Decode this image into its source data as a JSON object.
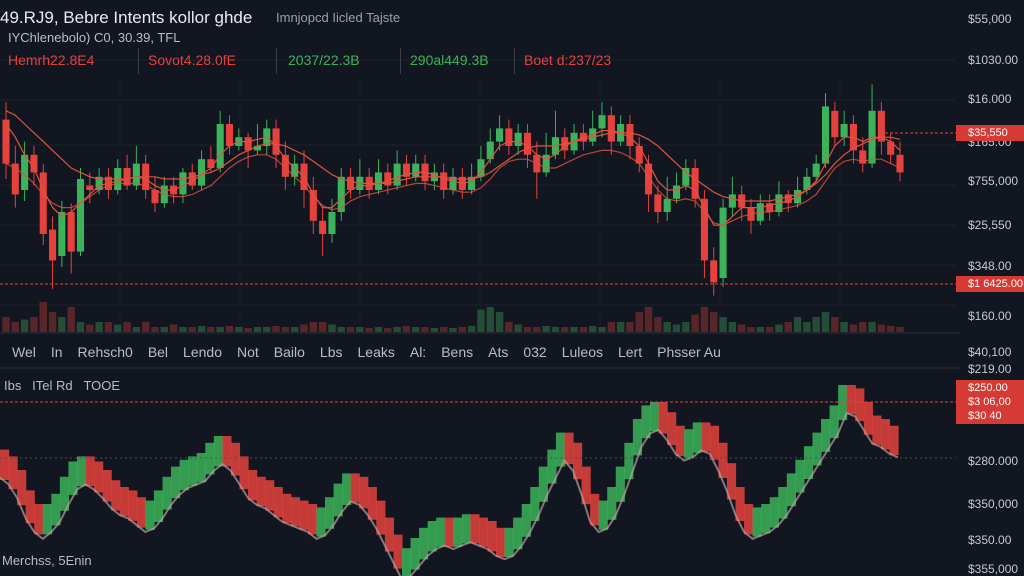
{
  "header": {
    "title": "49.RJ9, Bebre Intents kollor ghde",
    "subtitle": "Imnjopcd Iicled Tajste",
    "subline": "IYChlenebolo) C0, 30.39, TFL"
  },
  "stats": [
    "Hemrh22.8E4",
    "Sovot4.28.0fE",
    "2037/22.3B",
    "290al449.3B",
    "Boet d:237/23"
  ],
  "nav_items": [
    "Wel",
    "In",
    "Rehsch0",
    "Bel",
    "Lendo",
    "Not",
    "Bailo",
    "Lbs",
    "Leaks",
    "Al:",
    "Bens",
    "Ats",
    "032",
    "Luleos",
    "Lert",
    "Phsser Au"
  ],
  "lower_panel": {
    "label": "Ibs   ITel Rd   TOOE"
  },
  "footer": {
    "label": "Merchss, 5Enin"
  },
  "price_axis": [
    "$55,000",
    "$1030.00",
    "$16.000",
    "$165.00",
    "$755,000",
    "$25,550",
    "$348.00",
    "$160.00",
    "$40,100",
    "$219.00",
    "$280.000",
    "$350,000",
    "$350.00",
    "$355,000"
  ],
  "price_tags": [
    "$35,550",
    "$1 6425.00",
    "$250.00",
    "$3 06,00",
    "$30 40"
  ],
  "colors": {
    "up": "#3cb35a",
    "down": "#e5423d",
    "background": "#121620",
    "ma": "#e0523f"
  },
  "chart_data": [
    {
      "type": "candlestick",
      "description_source": "upper price panel",
      "candles": [
        {
          "o": 0.82,
          "c": 0.62,
          "h": 0.9,
          "l": 0.55
        },
        {
          "o": 0.62,
          "c": 0.48,
          "h": 0.7,
          "l": 0.42
        },
        {
          "o": 0.5,
          "c": 0.66,
          "h": 0.72,
          "l": 0.45
        },
        {
          "o": 0.66,
          "c": 0.58,
          "h": 0.7,
          "l": 0.52
        },
        {
          "o": 0.58,
          "c": 0.3,
          "h": 0.62,
          "l": 0.25
        },
        {
          "o": 0.32,
          "c": 0.18,
          "h": 0.38,
          "l": 0.05
        },
        {
          "o": 0.2,
          "c": 0.4,
          "h": 0.45,
          "l": 0.15
        },
        {
          "o": 0.4,
          "c": 0.22,
          "h": 0.44,
          "l": 0.12
        },
        {
          "o": 0.22,
          "c": 0.55,
          "h": 0.6,
          "l": 0.2
        },
        {
          "o": 0.52,
          "c": 0.5,
          "h": 0.58,
          "l": 0.44
        },
        {
          "o": 0.5,
          "c": 0.56,
          "h": 0.6,
          "l": 0.48
        },
        {
          "o": 0.56,
          "c": 0.5,
          "h": 0.6,
          "l": 0.46
        },
        {
          "o": 0.5,
          "c": 0.6,
          "h": 0.64,
          "l": 0.48
        },
        {
          "o": 0.6,
          "c": 0.52,
          "h": 0.66,
          "l": 0.5
        },
        {
          "o": 0.52,
          "c": 0.62,
          "h": 0.7,
          "l": 0.5
        },
        {
          "o": 0.62,
          "c": 0.5,
          "h": 0.66,
          "l": 0.46
        },
        {
          "o": 0.5,
          "c": 0.44,
          "h": 0.56,
          "l": 0.4
        },
        {
          "o": 0.44,
          "c": 0.52,
          "h": 0.56,
          "l": 0.42
        },
        {
          "o": 0.52,
          "c": 0.48,
          "h": 0.56,
          "l": 0.44
        },
        {
          "o": 0.48,
          "c": 0.58,
          "h": 0.6,
          "l": 0.44
        },
        {
          "o": 0.58,
          "c": 0.52,
          "h": 0.62,
          "l": 0.5
        },
        {
          "o": 0.52,
          "c": 0.64,
          "h": 0.68,
          "l": 0.5
        },
        {
          "o": 0.64,
          "c": 0.6,
          "h": 0.7,
          "l": 0.58
        },
        {
          "o": 0.6,
          "c": 0.8,
          "h": 0.86,
          "l": 0.58
        },
        {
          "o": 0.8,
          "c": 0.7,
          "h": 0.84,
          "l": 0.66
        },
        {
          "o": 0.7,
          "c": 0.74,
          "h": 0.78,
          "l": 0.68
        },
        {
          "o": 0.74,
          "c": 0.68,
          "h": 0.76,
          "l": 0.6
        },
        {
          "o": 0.68,
          "c": 0.7,
          "h": 0.8,
          "l": 0.66
        },
        {
          "o": 0.7,
          "c": 0.78,
          "h": 0.82,
          "l": 0.66
        },
        {
          "o": 0.78,
          "c": 0.66,
          "h": 0.82,
          "l": 0.6
        },
        {
          "o": 0.66,
          "c": 0.56,
          "h": 0.72,
          "l": 0.5
        },
        {
          "o": 0.56,
          "c": 0.62,
          "h": 0.66,
          "l": 0.52
        },
        {
          "o": 0.62,
          "c": 0.5,
          "h": 0.68,
          "l": 0.42
        },
        {
          "o": 0.5,
          "c": 0.36,
          "h": 0.56,
          "l": 0.3
        },
        {
          "o": 0.36,
          "c": 0.3,
          "h": 0.42,
          "l": 0.2
        },
        {
          "o": 0.3,
          "c": 0.4,
          "h": 0.46,
          "l": 0.26
        },
        {
          "o": 0.4,
          "c": 0.56,
          "h": 0.6,
          "l": 0.36
        },
        {
          "o": 0.56,
          "c": 0.5,
          "h": 0.6,
          "l": 0.46
        },
        {
          "o": 0.5,
          "c": 0.56,
          "h": 0.64,
          "l": 0.48
        },
        {
          "o": 0.56,
          "c": 0.5,
          "h": 0.6,
          "l": 0.46
        },
        {
          "o": 0.5,
          "c": 0.58,
          "h": 0.64,
          "l": 0.48
        },
        {
          "o": 0.58,
          "c": 0.52,
          "h": 0.62,
          "l": 0.48
        },
        {
          "o": 0.52,
          "c": 0.62,
          "h": 0.68,
          "l": 0.5
        },
        {
          "o": 0.62,
          "c": 0.56,
          "h": 0.66,
          "l": 0.52
        },
        {
          "o": 0.56,
          "c": 0.62,
          "h": 0.66,
          "l": 0.54
        },
        {
          "o": 0.62,
          "c": 0.54,
          "h": 0.66,
          "l": 0.5
        },
        {
          "o": 0.54,
          "c": 0.58,
          "h": 0.62,
          "l": 0.5
        },
        {
          "o": 0.58,
          "c": 0.5,
          "h": 0.62,
          "l": 0.46
        },
        {
          "o": 0.5,
          "c": 0.56,
          "h": 0.6,
          "l": 0.48
        },
        {
          "o": 0.56,
          "c": 0.5,
          "h": 0.6,
          "l": 0.46
        },
        {
          "o": 0.5,
          "c": 0.56,
          "h": 0.62,
          "l": 0.48
        },
        {
          "o": 0.56,
          "c": 0.64,
          "h": 0.7,
          "l": 0.54
        },
        {
          "o": 0.64,
          "c": 0.72,
          "h": 0.78,
          "l": 0.62
        },
        {
          "o": 0.72,
          "c": 0.78,
          "h": 0.84,
          "l": 0.68
        },
        {
          "o": 0.78,
          "c": 0.7,
          "h": 0.82,
          "l": 0.66
        },
        {
          "o": 0.7,
          "c": 0.76,
          "h": 0.8,
          "l": 0.66
        },
        {
          "o": 0.76,
          "c": 0.66,
          "h": 0.8,
          "l": 0.6
        },
        {
          "o": 0.66,
          "c": 0.58,
          "h": 0.72,
          "l": 0.46
        },
        {
          "o": 0.58,
          "c": 0.66,
          "h": 0.76,
          "l": 0.56
        },
        {
          "o": 0.66,
          "c": 0.74,
          "h": 0.86,
          "l": 0.64
        },
        {
          "o": 0.74,
          "c": 0.68,
          "h": 0.78,
          "l": 0.64
        },
        {
          "o": 0.68,
          "c": 0.76,
          "h": 0.8,
          "l": 0.66
        },
        {
          "o": 0.76,
          "c": 0.72,
          "h": 0.8,
          "l": 0.68
        },
        {
          "o": 0.72,
          "c": 0.78,
          "h": 0.86,
          "l": 0.7
        },
        {
          "o": 0.78,
          "c": 0.84,
          "h": 0.9,
          "l": 0.74
        },
        {
          "o": 0.84,
          "c": 0.72,
          "h": 0.88,
          "l": 0.66
        },
        {
          "o": 0.72,
          "c": 0.8,
          "h": 0.84,
          "l": 0.7
        },
        {
          "o": 0.8,
          "c": 0.7,
          "h": 0.84,
          "l": 0.64
        },
        {
          "o": 0.7,
          "c": 0.62,
          "h": 0.74,
          "l": 0.58
        },
        {
          "o": 0.62,
          "c": 0.48,
          "h": 0.66,
          "l": 0.4
        },
        {
          "o": 0.48,
          "c": 0.4,
          "h": 0.52,
          "l": 0.35
        },
        {
          "o": 0.4,
          "c": 0.46,
          "h": 0.56,
          "l": 0.36
        },
        {
          "o": 0.46,
          "c": 0.52,
          "h": 0.58,
          "l": 0.44
        },
        {
          "o": 0.52,
          "c": 0.6,
          "h": 0.64,
          "l": 0.5
        },
        {
          "o": 0.6,
          "c": 0.46,
          "h": 0.64,
          "l": 0.42
        },
        {
          "o": 0.46,
          "c": 0.18,
          "h": 0.5,
          "l": 0.1
        },
        {
          "o": 0.18,
          "c": 0.08,
          "h": 0.24,
          "l": 0.02
        },
        {
          "o": 0.1,
          "c": 0.42,
          "h": 0.46,
          "l": 0.06
        },
        {
          "o": 0.42,
          "c": 0.48,
          "h": 0.56,
          "l": 0.38
        },
        {
          "o": 0.48,
          "c": 0.42,
          "h": 0.52,
          "l": 0.36
        },
        {
          "o": 0.42,
          "c": 0.36,
          "h": 0.46,
          "l": 0.3
        },
        {
          "o": 0.36,
          "c": 0.44,
          "h": 0.48,
          "l": 0.34
        },
        {
          "o": 0.44,
          "c": 0.4,
          "h": 0.48,
          "l": 0.36
        },
        {
          "o": 0.4,
          "c": 0.48,
          "h": 0.54,
          "l": 0.38
        },
        {
          "o": 0.48,
          "c": 0.44,
          "h": 0.5,
          "l": 0.4
        },
        {
          "o": 0.44,
          "c": 0.5,
          "h": 0.56,
          "l": 0.42
        },
        {
          "o": 0.5,
          "c": 0.56,
          "h": 0.6,
          "l": 0.48
        },
        {
          "o": 0.56,
          "c": 0.62,
          "h": 0.66,
          "l": 0.54
        },
        {
          "o": 0.62,
          "c": 0.88,
          "h": 0.94,
          "l": 0.6
        },
        {
          "o": 0.86,
          "c": 0.74,
          "h": 0.9,
          "l": 0.7
        },
        {
          "o": 0.74,
          "c": 0.8,
          "h": 0.86,
          "l": 0.7
        },
        {
          "o": 0.8,
          "c": 0.68,
          "h": 0.84,
          "l": 0.62
        },
        {
          "o": 0.68,
          "c": 0.62,
          "h": 0.74,
          "l": 0.58
        },
        {
          "o": 0.62,
          "c": 0.86,
          "h": 0.98,
          "l": 0.6
        },
        {
          "o": 0.86,
          "c": 0.72,
          "h": 0.9,
          "l": 0.66
        },
        {
          "o": 0.72,
          "c": 0.66,
          "h": 0.76,
          "l": 0.62
        },
        {
          "o": 0.66,
          "c": 0.58,
          "h": 0.72,
          "l": 0.54
        }
      ],
      "volume": [
        0.3,
        0.2,
        0.25,
        0.3,
        0.6,
        0.4,
        0.3,
        0.5,
        0.2,
        0.15,
        0.2,
        0.2,
        0.15,
        0.2,
        0.1,
        0.2,
        0.1,
        0.1,
        0.15,
        0.1,
        0.1,
        0.12,
        0.1,
        0.1,
        0.12,
        0.1,
        0.08,
        0.1,
        0.1,
        0.12,
        0.1,
        0.1,
        0.15,
        0.2,
        0.2,
        0.15,
        0.1,
        0.1,
        0.1,
        0.08,
        0.1,
        0.08,
        0.1,
        0.12,
        0.1,
        0.1,
        0.08,
        0.1,
        0.08,
        0.1,
        0.12,
        0.45,
        0.5,
        0.4,
        0.2,
        0.15,
        0.1,
        0.1,
        0.12,
        0.1,
        0.1,
        0.1,
        0.1,
        0.12,
        0.1,
        0.2,
        0.2,
        0.2,
        0.4,
        0.5,
        0.3,
        0.2,
        0.15,
        0.2,
        0.35,
        0.5,
        0.4,
        0.3,
        0.2,
        0.15,
        0.1,
        0.1,
        0.1,
        0.15,
        0.2,
        0.3,
        0.2,
        0.3,
        0.4,
        0.3,
        0.2,
        0.15,
        0.2,
        0.2,
        0.15,
        0.12,
        0.1
      ],
      "ma_fast": [
        0.8,
        0.74,
        0.66,
        0.6,
        0.5,
        0.42,
        0.38,
        0.4,
        0.44,
        0.48,
        0.52,
        0.53,
        0.54,
        0.55,
        0.56,
        0.55,
        0.52,
        0.5,
        0.5,
        0.52,
        0.54,
        0.57,
        0.6,
        0.66,
        0.7,
        0.72,
        0.72,
        0.73,
        0.74,
        0.7,
        0.64,
        0.6,
        0.56,
        0.48,
        0.42,
        0.42,
        0.46,
        0.5,
        0.52,
        0.52,
        0.53,
        0.54,
        0.56,
        0.57,
        0.58,
        0.58,
        0.57,
        0.55,
        0.54,
        0.53,
        0.54,
        0.58,
        0.64,
        0.7,
        0.72,
        0.72,
        0.7,
        0.66,
        0.64,
        0.66,
        0.7,
        0.72,
        0.74,
        0.75,
        0.77,
        0.77,
        0.76,
        0.74,
        0.7,
        0.62,
        0.54,
        0.5,
        0.5,
        0.52,
        0.5,
        0.42,
        0.34,
        0.34,
        0.38,
        0.42,
        0.42,
        0.42,
        0.43,
        0.44,
        0.45,
        0.47,
        0.5,
        0.54,
        0.62,
        0.7,
        0.74,
        0.74,
        0.72,
        0.74,
        0.74,
        0.72,
        0.68
      ],
      "ma_slow": [
        0.86,
        0.84,
        0.8,
        0.76,
        0.72,
        0.68,
        0.64,
        0.6,
        0.58,
        0.56,
        0.55,
        0.55,
        0.55,
        0.55,
        0.56,
        0.56,
        0.56,
        0.55,
        0.55,
        0.55,
        0.56,
        0.57,
        0.58,
        0.6,
        0.63,
        0.66,
        0.68,
        0.7,
        0.71,
        0.71,
        0.7,
        0.68,
        0.66,
        0.63,
        0.6,
        0.57,
        0.55,
        0.54,
        0.53,
        0.53,
        0.53,
        0.53,
        0.54,
        0.55,
        0.56,
        0.56,
        0.56,
        0.56,
        0.55,
        0.55,
        0.55,
        0.56,
        0.58,
        0.61,
        0.64,
        0.67,
        0.69,
        0.7,
        0.7,
        0.7,
        0.71,
        0.72,
        0.73,
        0.74,
        0.75,
        0.76,
        0.76,
        0.76,
        0.75,
        0.73,
        0.7,
        0.66,
        0.62,
        0.58,
        0.55,
        0.52,
        0.49,
        0.47,
        0.46,
        0.45,
        0.45,
        0.45,
        0.45,
        0.46,
        0.47,
        0.48,
        0.5,
        0.53,
        0.57,
        0.62,
        0.66,
        0.69,
        0.71,
        0.73,
        0.74,
        0.74,
        0.73
      ],
      "ma_third": [
        0.62,
        0.6,
        0.57,
        0.53,
        0.48,
        0.44,
        0.42,
        0.42,
        0.44,
        0.47,
        0.5,
        0.52,
        0.53,
        0.53,
        0.53,
        0.52,
        0.5,
        0.48,
        0.47,
        0.47,
        0.48,
        0.5,
        0.52,
        0.56,
        0.6,
        0.63,
        0.65,
        0.66,
        0.66,
        0.64,
        0.6,
        0.56,
        0.52,
        0.47,
        0.43,
        0.41,
        0.42,
        0.45,
        0.47,
        0.48,
        0.49,
        0.5,
        0.51,
        0.52,
        0.53,
        0.53,
        0.52,
        0.51,
        0.5,
        0.49,
        0.49,
        0.51,
        0.55,
        0.6,
        0.63,
        0.64,
        0.64,
        0.62,
        0.6,
        0.6,
        0.62,
        0.64,
        0.66,
        0.67,
        0.68,
        0.68,
        0.67,
        0.65,
        0.62,
        0.56,
        0.5,
        0.46,
        0.45,
        0.46,
        0.45,
        0.4,
        0.35,
        0.34,
        0.36,
        0.38,
        0.39,
        0.4,
        0.4,
        0.41,
        0.42,
        0.43,
        0.45,
        0.48,
        0.54,
        0.6,
        0.63,
        0.64,
        0.63,
        0.64,
        0.64,
        0.62,
        0.6
      ]
    },
    {
      "type": "area",
      "description_source": "lower oscillator panel",
      "values": [
        0.62,
        0.58,
        0.5,
        0.38,
        0.3,
        0.26,
        0.3,
        0.36,
        0.46,
        0.55,
        0.58,
        0.55,
        0.5,
        0.44,
        0.4,
        0.38,
        0.34,
        0.3,
        0.32,
        0.38,
        0.46,
        0.52,
        0.56,
        0.58,
        0.6,
        0.66,
        0.7,
        0.66,
        0.58,
        0.5,
        0.46,
        0.44,
        0.4,
        0.36,
        0.34,
        0.32,
        0.3,
        0.26,
        0.28,
        0.34,
        0.42,
        0.48,
        0.46,
        0.4,
        0.32,
        0.22,
        0.12,
        0.02,
        0.04,
        0.1,
        0.16,
        0.2,
        0.22,
        0.2,
        0.22,
        0.24,
        0.22,
        0.2,
        0.16,
        0.14,
        0.16,
        0.22,
        0.3,
        0.4,
        0.52,
        0.62,
        0.72,
        0.66,
        0.52,
        0.36,
        0.3,
        0.32,
        0.4,
        0.52,
        0.66,
        0.8,
        0.88,
        0.9,
        0.84,
        0.76,
        0.72,
        0.74,
        0.78,
        0.76,
        0.66,
        0.54,
        0.4,
        0.3,
        0.26,
        0.28,
        0.3,
        0.34,
        0.4,
        0.48,
        0.56,
        0.64,
        0.72,
        0.8,
        0.88,
        1.0,
        0.98,
        0.9,
        0.82,
        0.8,
        0.76,
        0.74
      ]
    }
  ]
}
